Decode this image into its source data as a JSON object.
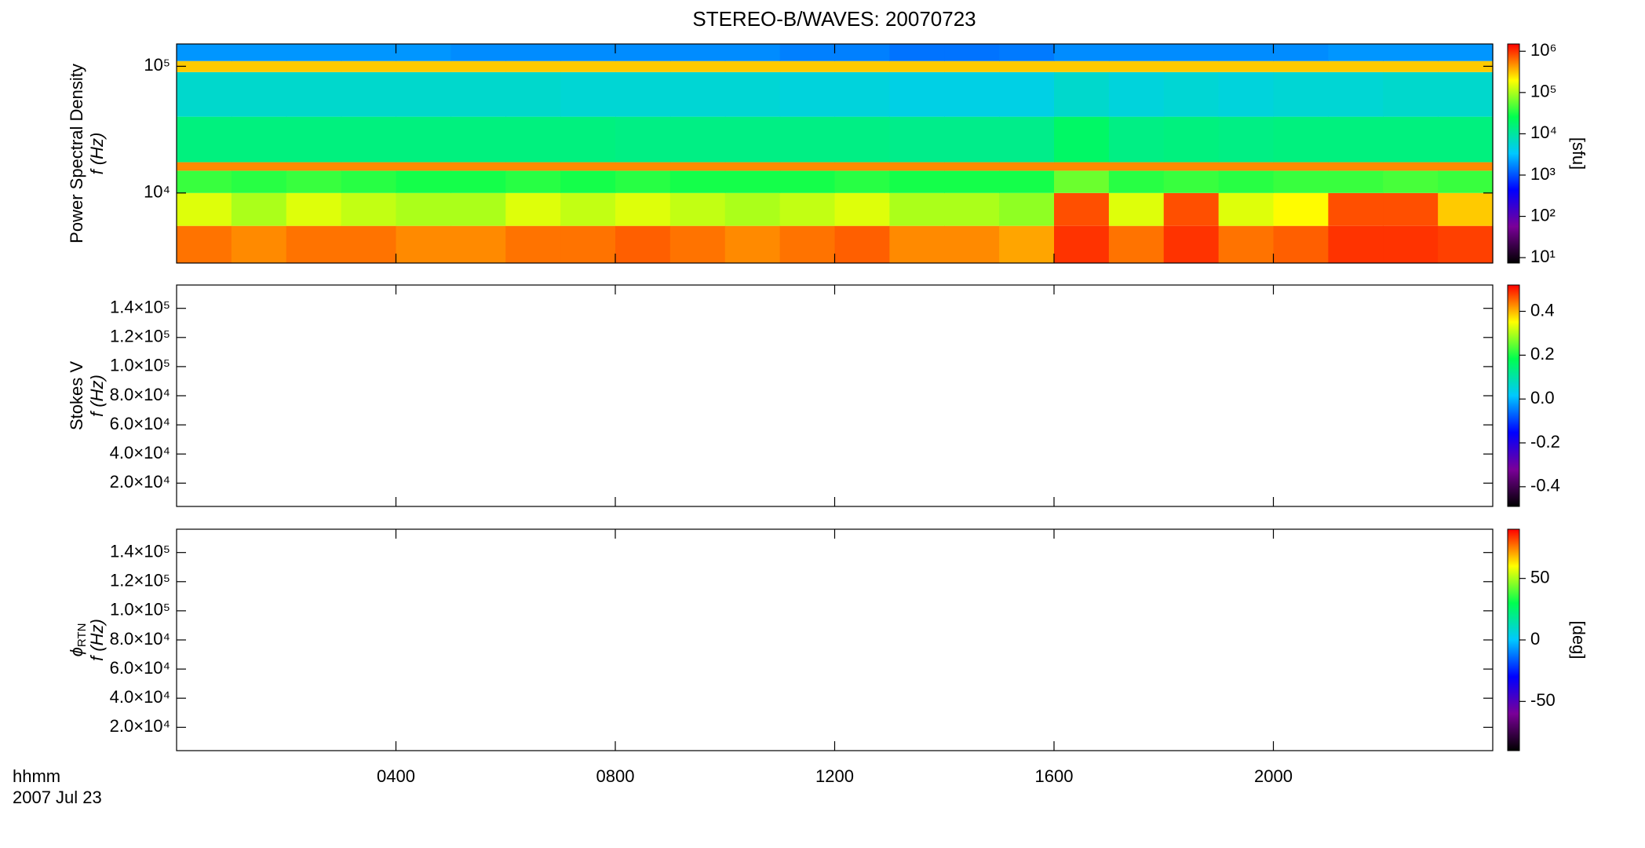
{
  "title": "STEREO-B/WAVES: 20070723",
  "x_label": "hhmm",
  "date_label": "2007 Jul 23",
  "colormap": [
    "#000000",
    "#7a0098",
    "#0000ff",
    "#00c8ff",
    "#00ff50",
    "#ffff00",
    "#ff0000"
  ],
  "chart_data": [
    {
      "type": "heatmap",
      "ylabel": [
        "Power Spectral Density",
        "f (Hz)"
      ],
      "log_y": true,
      "ylim": [
        2800,
        150000
      ],
      "yticks": [
        {
          "value": 10000,
          "label": "10⁴"
        },
        {
          "value": 100000,
          "label": "10⁵"
        }
      ],
      "x_edges": [
        0,
        100,
        200,
        300,
        400,
        500,
        600,
        700,
        800,
        900,
        1000,
        1100,
        1200,
        1300,
        1400,
        1500,
        1600,
        1700,
        1800,
        1900,
        2000,
        2100,
        2200,
        2300,
        2400
      ],
      "y_edges": [
        2800,
        5500,
        10000,
        15000,
        17500,
        40000,
        90000,
        110000,
        150000
      ],
      "z": [
        [
          600000,
          500000,
          600000,
          600000,
          500000,
          500000,
          600000,
          600000,
          700000,
          600000,
          500000,
          600000,
          700000,
          500000,
          500000,
          400000,
          1000000,
          600000,
          1000000,
          600000,
          700000,
          1000000,
          1000000,
          900000
        ],
        [
          150000,
          100000,
          150000,
          120000,
          100000,
          100000,
          150000,
          120000,
          150000,
          120000,
          100000,
          120000,
          150000,
          100000,
          100000,
          80000,
          800000,
          150000,
          800000,
          150000,
          200000,
          800000,
          800000,
          300000
        ],
        [
          40000,
          35000,
          40000,
          35000,
          30000,
          30000,
          35000,
          30000,
          35000,
          30000,
          30000,
          30000,
          35000,
          30000,
          30000,
          30000,
          60000,
          35000,
          40000,
          35000,
          40000,
          40000,
          45000,
          40000
        ],
        [
          500000,
          500000,
          500000,
          500000,
          500000,
          500000,
          500000,
          500000,
          500000,
          500000,
          500000,
          500000,
          500000,
          500000,
          500000,
          500000,
          500000,
          500000,
          500000,
          500000,
          500000,
          500000,
          500000,
          500000
        ],
        [
          15000,
          15000,
          15000,
          15000,
          15000,
          15000,
          15000,
          15000,
          14000,
          14000,
          14000,
          14000,
          14000,
          13000,
          13000,
          13000,
          20000,
          14000,
          15000,
          14000,
          15000,
          15000,
          15000,
          15000
        ],
        [
          6000,
          6000,
          6000,
          6000,
          6000,
          6000,
          6000,
          5500,
          5500,
          5500,
          5500,
          5000,
          5000,
          4500,
          4500,
          4500,
          6000,
          5000,
          5500,
          5000,
          5500,
          5500,
          6000,
          6000
        ],
        [
          300000,
          300000,
          300000,
          300000,
          300000,
          300000,
          300000,
          300000,
          300000,
          300000,
          300000,
          300000,
          300000,
          300000,
          300000,
          300000,
          300000,
          300000,
          300000,
          300000,
          300000,
          300000,
          300000,
          300000
        ],
        [
          2000,
          2000,
          2000,
          2000,
          2000,
          1800,
          1800,
          1800,
          1800,
          1800,
          1800,
          1600,
          1600,
          1400,
          1400,
          1500,
          1800,
          1800,
          1800,
          1800,
          1800,
          2000,
          2000,
          2000
        ]
      ],
      "colorbar": {
        "log": true,
        "lim": [
          7.4,
          1500000
        ],
        "label": "[sfu]",
        "ticks": [
          {
            "value": 10,
            "label": "10¹"
          },
          {
            "value": 100,
            "label": "10²"
          },
          {
            "value": 1000,
            "label": "10³"
          },
          {
            "value": 10000,
            "label": "10⁴"
          },
          {
            "value": 100000,
            "label": "10⁵"
          },
          {
            "value": 1000000,
            "label": "10⁶"
          }
        ]
      }
    },
    {
      "type": "heatmap",
      "ylabel": [
        "Stokes V",
        "f (Hz)"
      ],
      "ylim": [
        4000,
        156000
      ],
      "yticks": [
        {
          "value": 20000,
          "label": "2.0×10⁴"
        },
        {
          "value": 40000,
          "label": "4.0×10⁴"
        },
        {
          "value": 60000,
          "label": "6.0×10⁴"
        },
        {
          "value": 80000,
          "label": "8.0×10⁴"
        },
        {
          "value": 100000,
          "label": "1.0×10⁵"
        },
        {
          "value": 120000,
          "label": "1.2×10⁵"
        },
        {
          "value": 140000,
          "label": "1.4×10⁵"
        }
      ],
      "colorbar": {
        "lim": [
          -0.49,
          0.52
        ],
        "ticks": [
          -0.4,
          -0.2,
          {
            "value": 0,
            "label": "0.0"
          },
          0.2,
          0.4
        ]
      }
    },
    {
      "type": "heatmap",
      "ylabel_symbol": "ϕ",
      "ylabel_subscript": "RTN",
      "ylabel": [
        "f (Hz)"
      ],
      "ylim": [
        4000,
        156000
      ],
      "yticks": [
        {
          "value": 20000,
          "label": "2.0×10⁴"
        },
        {
          "value": 40000,
          "label": "4.0×10⁴"
        },
        {
          "value": 60000,
          "label": "6.0×10⁴"
        },
        {
          "value": 80000,
          "label": "8.0×10⁴"
        },
        {
          "value": 100000,
          "label": "1.0×10⁵"
        },
        {
          "value": 120000,
          "label": "1.2×10⁵"
        },
        {
          "value": 140000,
          "label": "1.4×10⁵"
        }
      ],
      "xlim": [
        0,
        2400
      ],
      "xticks": [
        {
          "value": 400,
          "label": "0400"
        },
        {
          "value": 800,
          "label": "0800"
        },
        {
          "value": 1200,
          "label": "1200"
        },
        {
          "value": 1600,
          "label": "1600"
        },
        {
          "value": 2000,
          "label": "2000"
        }
      ],
      "colorbar": {
        "lim": [
          -90,
          90
        ],
        "label": "[deg]",
        "ticks": [
          -50,
          0,
          50
        ]
      }
    }
  ]
}
